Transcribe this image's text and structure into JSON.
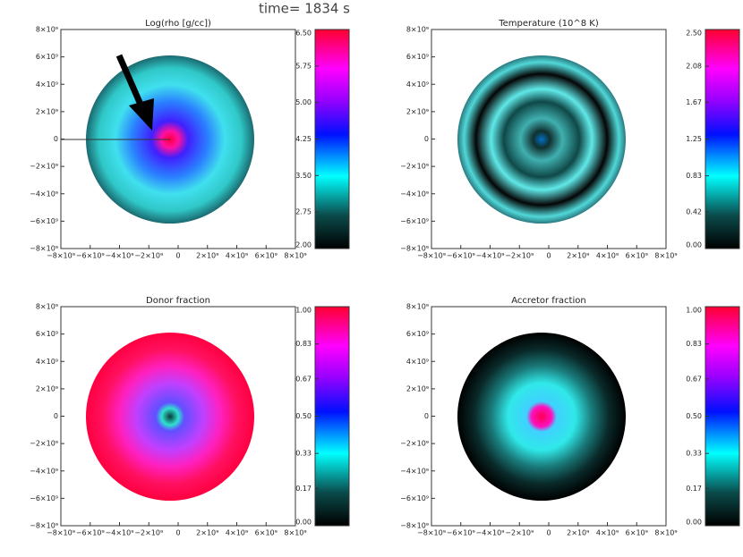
{
  "title": "time= 1834 s",
  "chart_data": [
    {
      "type": "image",
      "title": "Log(rho [g/cc])",
      "xlim": [
        -8000000000,
        8000000000
      ],
      "ylim": [
        -8000000000,
        8000000000
      ],
      "xticks": [
        {
          "value": -8000000000,
          "label": "−8×10⁹"
        },
        {
          "value": -6000000000,
          "label": "−6×10⁹"
        },
        {
          "value": -4000000000,
          "label": "−4×10⁹"
        },
        {
          "value": -2000000000,
          "label": "−2×10⁹"
        },
        0,
        {
          "value": 2000000000,
          "label": "2×10⁹"
        },
        {
          "value": 4000000000,
          "label": "4×10⁹"
        },
        {
          "value": 6000000000,
          "label": "6×10⁹"
        },
        {
          "value": 8000000000,
          "label": "8×10⁹"
        }
      ],
      "yticks": [
        {
          "value": -8000000000,
          "label": "−8×10⁹"
        },
        {
          "value": -6000000000,
          "label": "−6×10⁹"
        },
        {
          "value": -4000000000,
          "label": "−4×10⁹"
        },
        {
          "value": -2000000000,
          "label": "−2×10⁹"
        },
        0,
        {
          "value": 2000000000,
          "label": "2×10⁹"
        },
        {
          "value": 4000000000,
          "label": "4×10⁹"
        },
        {
          "value": 6000000000,
          "label": "6×10⁹"
        },
        {
          "value": 8000000000,
          "label": "8×10⁹"
        }
      ],
      "clim": [
        2,
        6.5
      ],
      "cticks": [
        {
          "value": 2,
          "label": "2.00"
        },
        2.75,
        {
          "value": 3.5,
          "label": "3.50"
        },
        4.25,
        {
          "value": 5,
          "label": "5.00"
        },
        5.75,
        {
          "value": 6.5,
          "label": "6.50"
        }
      ]
    },
    {
      "type": "image",
      "title": "Temperature (10^8 K)",
      "xlim": [
        -8000000000,
        8000000000
      ],
      "ylim": [
        -8000000000,
        8000000000
      ],
      "xticks": [
        {
          "value": -8000000000,
          "label": "−8×10⁹"
        },
        {
          "value": -6000000000,
          "label": "−6×10⁹"
        },
        {
          "value": -4000000000,
          "label": "−4×10⁹"
        },
        {
          "value": -2000000000,
          "label": "−2×10⁹"
        },
        0,
        {
          "value": 2000000000,
          "label": "2×10⁹"
        },
        {
          "value": 4000000000,
          "label": "4×10⁹"
        },
        {
          "value": 6000000000,
          "label": "6×10⁹"
        },
        {
          "value": 8000000000,
          "label": "8×10⁹"
        }
      ],
      "yticks": [
        {
          "value": -8000000000,
          "label": "−8×10⁹"
        },
        {
          "value": -6000000000,
          "label": "−6×10⁹"
        },
        {
          "value": -4000000000,
          "label": "−4×10⁹"
        },
        {
          "value": -2000000000,
          "label": "−2×10⁹"
        },
        0,
        {
          "value": 2000000000,
          "label": "2×10⁹"
        },
        {
          "value": 4000000000,
          "label": "4×10⁹"
        },
        {
          "value": 6000000000,
          "label": "6×10⁹"
        },
        {
          "value": 8000000000,
          "label": "8×10⁹"
        }
      ],
      "clim": [
        0,
        2.5
      ],
      "cticks": [
        {
          "value": 0,
          "label": "0.00"
        },
        0.42,
        0.83,
        1.25,
        1.67,
        2.08,
        {
          "value": 2.5,
          "label": "2.50"
        }
      ]
    },
    {
      "type": "image",
      "title": "Donor fraction",
      "xlim": [
        -8000000000,
        8000000000
      ],
      "ylim": [
        -8000000000,
        8000000000
      ],
      "xticks": [
        {
          "value": -8000000000,
          "label": "−8×10⁹"
        },
        {
          "value": -6000000000,
          "label": "−6×10⁹"
        },
        {
          "value": -4000000000,
          "label": "−4×10⁹"
        },
        {
          "value": -2000000000,
          "label": "−2×10⁹"
        },
        0,
        {
          "value": 2000000000,
          "label": "2×10⁹"
        },
        {
          "value": 4000000000,
          "label": "4×10⁹"
        },
        {
          "value": 6000000000,
          "label": "6×10⁹"
        },
        {
          "value": 8000000000,
          "label": "8×10⁹"
        }
      ],
      "yticks": [
        {
          "value": -8000000000,
          "label": "−8×10⁹"
        },
        {
          "value": -6000000000,
          "label": "−6×10⁹"
        },
        {
          "value": -4000000000,
          "label": "−4×10⁹"
        },
        {
          "value": -2000000000,
          "label": "−2×10⁹"
        },
        0,
        {
          "value": 2000000000,
          "label": "2×10⁹"
        },
        {
          "value": 4000000000,
          "label": "4×10⁹"
        },
        {
          "value": 6000000000,
          "label": "6×10⁹"
        },
        {
          "value": 8000000000,
          "label": "8×10⁹"
        }
      ],
      "clim": [
        0,
        1
      ],
      "cticks": [
        {
          "value": 0,
          "label": "0.00"
        },
        0.17,
        0.33,
        {
          "value": 0.5,
          "label": "0.50"
        },
        0.67,
        0.83,
        {
          "value": 1,
          "label": "1.00"
        }
      ]
    },
    {
      "type": "image",
      "title": "Accretor fraction",
      "xlim": [
        -8000000000,
        8000000000
      ],
      "ylim": [
        -8000000000,
        8000000000
      ],
      "xticks": [
        {
          "value": -8000000000,
          "label": "−8×10⁹"
        },
        {
          "value": -6000000000,
          "label": "−6×10⁹"
        },
        {
          "value": -4000000000,
          "label": "−4×10⁹"
        },
        {
          "value": -2000000000,
          "label": "−2×10⁹"
        },
        0,
        {
          "value": 2000000000,
          "label": "2×10⁹"
        },
        {
          "value": 4000000000,
          "label": "4×10⁹"
        },
        {
          "value": 6000000000,
          "label": "6×10⁹"
        },
        {
          "value": 8000000000,
          "label": "8×10⁹"
        }
      ],
      "yticks": [
        {
          "value": -8000000000,
          "label": "−8×10⁹"
        },
        {
          "value": -6000000000,
          "label": "−6×10⁹"
        },
        {
          "value": -4000000000,
          "label": "−4×10⁹"
        },
        {
          "value": -2000000000,
          "label": "−2×10⁹"
        },
        0,
        {
          "value": 2000000000,
          "label": "2×10⁹"
        },
        {
          "value": 4000000000,
          "label": "4×10⁹"
        },
        {
          "value": 6000000000,
          "label": "6×10⁹"
        },
        {
          "value": 8000000000,
          "label": "8×10⁹"
        }
      ],
      "clim": [
        0,
        1
      ],
      "cticks": [
        {
          "value": 0,
          "label": "0.00"
        },
        0.17,
        0.33,
        {
          "value": 0.5,
          "label": "0.50"
        },
        0.67,
        0.83,
        {
          "value": 1,
          "label": "1.00"
        }
      ]
    }
  ]
}
